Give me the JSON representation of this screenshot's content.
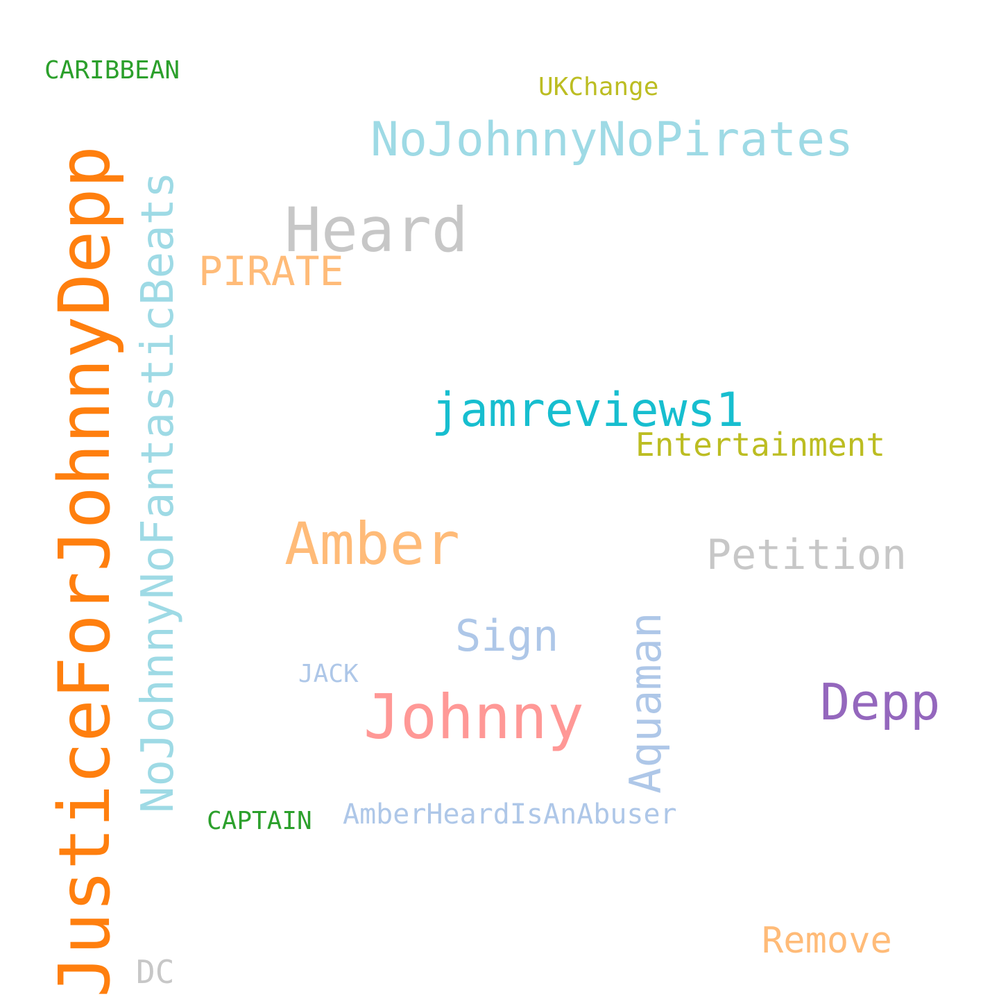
{
  "wordcloud": {
    "words": {
      "justicefor_johnnydepp": {
        "text": "JusticeForJohnnyDepp",
        "color": "#ff7f0e"
      },
      "nojohnny_nofantasticbeats": {
        "text": "NoJohnnyNoFantasticBeats",
        "color": "#9edae5"
      },
      "caribbean": {
        "text": "CARIBBEAN",
        "color": "#2ca02c"
      },
      "ukchange": {
        "text": "UKChange",
        "color": "#bcbd22"
      },
      "nojohnny_nopirates": {
        "text": "NoJohnnyNoPirates",
        "color": "#9edae5"
      },
      "heard": {
        "text": "Heard",
        "color": "#c7c7c7"
      },
      "pirate": {
        "text": "PIRATE",
        "color": "#ffbb78"
      },
      "jamreviews1": {
        "text": "jamreviews1",
        "color": "#17becf"
      },
      "entertainment": {
        "text": "Entertainment",
        "color": "#bcbd22"
      },
      "amber": {
        "text": "Amber",
        "color": "#ffbb78"
      },
      "petition": {
        "text": "Petition",
        "color": "#c7c7c7"
      },
      "sign": {
        "text": "Sign",
        "color": "#aec7e8"
      },
      "aquaman": {
        "text": "Aquaman",
        "color": "#aec7e8"
      },
      "jack": {
        "text": "JACK",
        "color": "#aec7e8"
      },
      "johnny": {
        "text": "Johnny",
        "color": "#ff9896"
      },
      "depp": {
        "text": "Depp",
        "color": "#9467bd"
      },
      "captain": {
        "text": "CAPTAIN",
        "color": "#2ca02c"
      },
      "amberheard_isanabuser": {
        "text": "AmberHeardIsAnAbuser",
        "color": "#aec7e8"
      },
      "remove": {
        "text": "Remove",
        "color": "#ffbb78"
      },
      "dc": {
        "text": "DC",
        "color": "#c7c7c7"
      }
    }
  }
}
